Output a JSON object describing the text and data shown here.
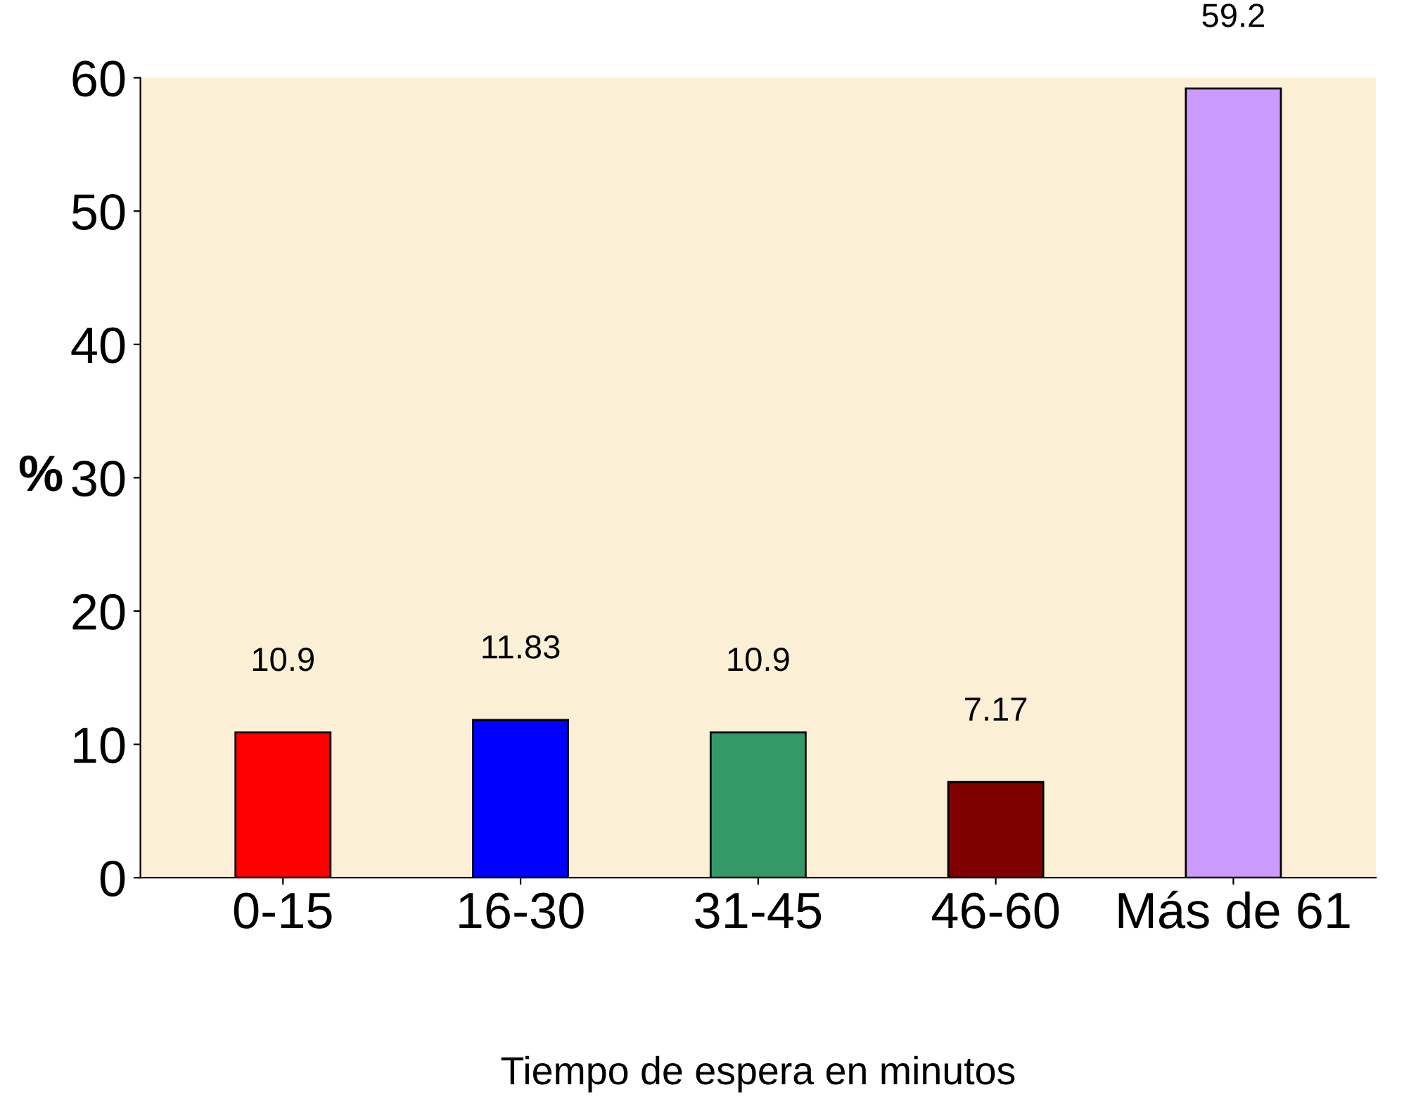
{
  "chart_data": {
    "type": "bar",
    "categories": [
      "0-15",
      "16-30",
      "31-45",
      "46-60",
      "Más de 61"
    ],
    "values": [
      10.9,
      11.83,
      10.9,
      7.17,
      59.2
    ],
    "colors": [
      "#ff0000",
      "#0000ff",
      "#339966",
      "#800000",
      "#cc99ff"
    ],
    "ylabel": "%",
    "xlabel": "Tiempo de espera en minutos",
    "ylim": [
      0,
      60
    ],
    "yticks": [
      0,
      10,
      20,
      30,
      40,
      50,
      60
    ],
    "data_labels": true,
    "grid": false,
    "legend": false
  }
}
